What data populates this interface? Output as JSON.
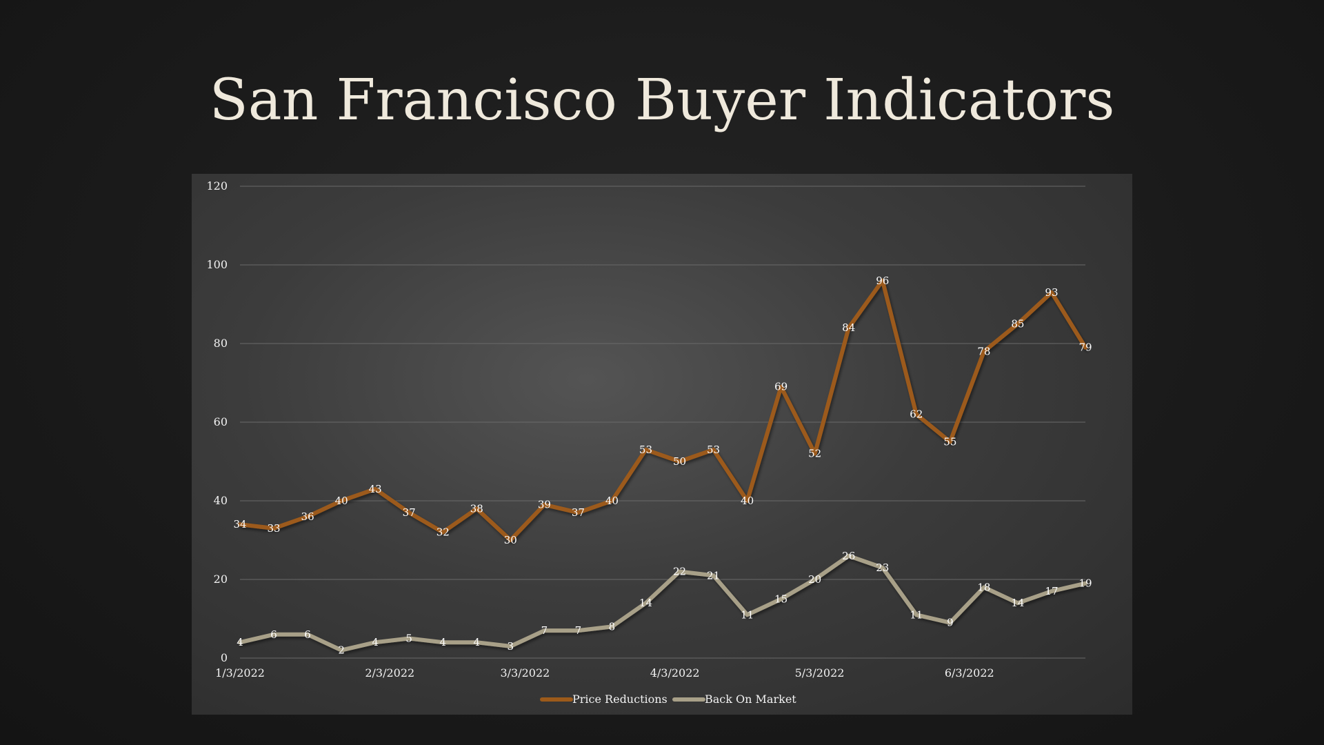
{
  "slide": {
    "title": "San Francisco Buyer Indicators"
  },
  "chart_data": {
    "type": "line",
    "title": "",
    "xlabel": "",
    "ylabel": "",
    "ylim": [
      0,
      120
    ],
    "yticks": [
      0,
      20,
      40,
      60,
      80,
      100,
      120
    ],
    "xtick_labels": [
      {
        "label": "1/3/2022",
        "index": 0
      },
      {
        "label": "2/3/2022",
        "index": 4.43
      },
      {
        "label": "3/3/2022",
        "index": 8.43
      },
      {
        "label": "4/3/2022",
        "index": 12.86
      },
      {
        "label": "5/3/2022",
        "index": 17.14
      },
      {
        "label": "6/3/2022",
        "index": 21.57
      }
    ],
    "grid": true,
    "legend_position": "bottom",
    "series": [
      {
        "name": "Price Reductions",
        "color": "#9c5a1a",
        "values": [
          34,
          33,
          36,
          40,
          43,
          37,
          32,
          38,
          30,
          39,
          37,
          40,
          53,
          50,
          53,
          40,
          69,
          52,
          84,
          96,
          62,
          55,
          78,
          85,
          93,
          79
        ]
      },
      {
        "name": "Back On Market",
        "color": "#a8a088",
        "values": [
          4,
          6,
          6,
          2,
          4,
          5,
          4,
          4,
          3,
          7,
          7,
          8,
          14,
          22,
          21,
          11,
          15,
          20,
          26,
          23,
          11,
          9,
          18,
          14,
          17,
          19
        ]
      }
    ]
  }
}
